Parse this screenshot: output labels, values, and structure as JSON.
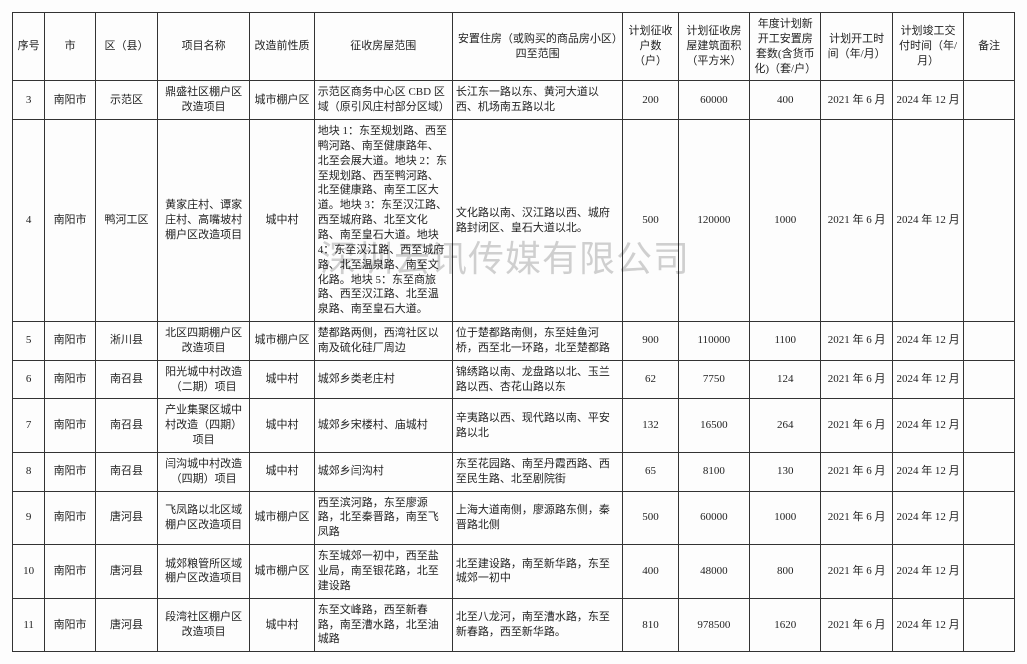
{
  "watermark": "深圳云讯传媒有限公司",
  "headers": {
    "seq": "序号",
    "city": "市",
    "district": "区（县）",
    "project": "项目名称",
    "nature": "改造前性质",
    "scope": "征收房屋范围",
    "resettle": "安置住房（或购买的商品房小区）四至范围",
    "households": "计划征收户数（户）",
    "area": "计划征收房屋建筑面积（平方米）",
    "units": "年度计划新开工安置房套数(含货币化)（套/户）",
    "start": "计划开工时间（年/月）",
    "end": "计划竣工交付时间（年/月）",
    "note": "备注"
  },
  "rows": [
    {
      "seq": "3",
      "city": "南阳市",
      "district": "示范区",
      "project": "鼎盛社区棚户区改造项目",
      "nature": "城市棚户区",
      "scope": "示范区商务中心区 CBD 区域（原引风庄村部分区域）",
      "resettle": "长江东一路以东、黄河大道以西、机场南五路以北",
      "households": "200",
      "area": "60000",
      "units": "400",
      "start": "2021 年 6 月",
      "end": "2024 年 12 月",
      "note": ""
    },
    {
      "seq": "4",
      "city": "南阳市",
      "district": "鸭河工区",
      "project": "黄家庄村、谭家庄村、高嘴坡村棚户区改造项目",
      "nature": "城中村",
      "scope": "地块 1：东至规划路、西至鸭河路、南至健康路年、北至会展大道。地块 2：东至规划路、西至鸭河路、北至健康路、南至工区大道。地块 3：东至汉江路、西至城府路、北至文化路、南至皇石大道。地块 4：东至汉江路、西至城府路、北至温泉路、南至文化路。地块 5：东至商旅路、西至汉江路、北至温泉路、南至皇石大道。",
      "resettle": "文化路以南、汉江路以西、城府路封闭区、皇石大道以北。",
      "households": "500",
      "area": "120000",
      "units": "1000",
      "start": "2021 年 6 月",
      "end": "2024 年 12 月",
      "note": ""
    },
    {
      "seq": "5",
      "city": "南阳市",
      "district": "淅川县",
      "project": "北区四期棚户区改造项目",
      "nature": "城市棚户区",
      "scope": "楚都路两侧，西湾社区以南及硫化硅厂周边",
      "resettle": "位于楚都路南侧，东至娃鱼河桥，西至北一环路，北至楚都路",
      "households": "900",
      "area": "110000",
      "units": "1100",
      "start": "2021 年 6 月",
      "end": "2024 年 12 月",
      "note": ""
    },
    {
      "seq": "6",
      "city": "南阳市",
      "district": "南召县",
      "project": "阳光城中村改造（二期）项目",
      "nature": "城中村",
      "scope": "城郊乡类老庄村",
      "resettle": "锦绣路以南、龙盘路以北、玉兰路以西、杏花山路以东",
      "households": "62",
      "area": "7750",
      "units": "124",
      "start": "2021 年 6 月",
      "end": "2024 年 12 月",
      "note": ""
    },
    {
      "seq": "7",
      "city": "南阳市",
      "district": "南召县",
      "project": "产业集聚区城中村改造（四期）项目",
      "nature": "城中村",
      "scope": "城郊乡宋楼村、庙城村",
      "resettle": "辛夷路以西、现代路以南、平安路以北",
      "households": "132",
      "area": "16500",
      "units": "264",
      "start": "2021 年 6 月",
      "end": "2024 年 12 月",
      "note": ""
    },
    {
      "seq": "8",
      "city": "南阳市",
      "district": "南召县",
      "project": "闫沟城中村改造（四期）项目",
      "nature": "城中村",
      "scope": "城郊乡闫沟村",
      "resettle": "东至花园路、南至丹霞西路、西至民生路、北至剧院街",
      "households": "65",
      "area": "8100",
      "units": "130",
      "start": "2021 年 6 月",
      "end": "2024 年 12 月",
      "note": ""
    },
    {
      "seq": "9",
      "city": "南阳市",
      "district": "唐河县",
      "project": "飞凤路以北区域棚户区改造项目",
      "nature": "城市棚户区",
      "scope": "西至滨河路，东至廖源路，北至秦晋路，南至飞凤路",
      "resettle": "上海大道南侧，廖源路东侧，秦晋路北侧",
      "households": "500",
      "area": "60000",
      "units": "1000",
      "start": "2021 年 6 月",
      "end": "2024 年 12 月",
      "note": ""
    },
    {
      "seq": "10",
      "city": "南阳市",
      "district": "唐河县",
      "project": "城郊粮管所区域棚户区改造项目",
      "nature": "城市棚户区",
      "scope": "东至城郊一初中，西至盐业局，南至银花路，北至建设路",
      "resettle": "北至建设路，南至新华路，东至城郊一初中",
      "households": "400",
      "area": "48000",
      "units": "800",
      "start": "2021 年 6 月",
      "end": "2024 年 12 月",
      "note": ""
    },
    {
      "seq": "11",
      "city": "南阳市",
      "district": "唐河县",
      "project": "段湾社区棚户区改造项目",
      "nature": "城中村",
      "scope": "东至文峰路，西至新春路，南至漕水路，北至油城路",
      "resettle": "北至八龙河，南至漕水路，东至新春路，西至新华路。",
      "households": "810",
      "area": "978500",
      "units": "1620",
      "start": "2021 年 6 月",
      "end": "2024 年 12 月",
      "note": ""
    }
  ]
}
